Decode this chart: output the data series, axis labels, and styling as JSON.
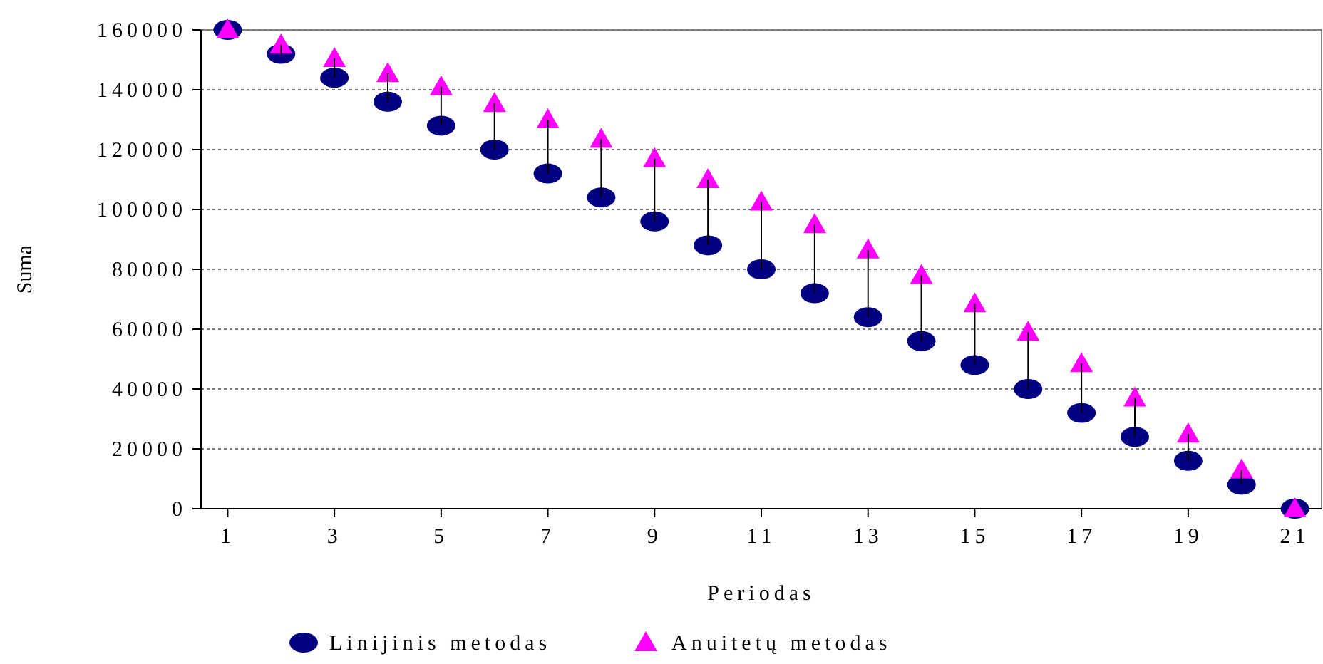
{
  "chart_data": {
    "type": "scatter",
    "xlabel": "Periodas",
    "ylabel": "Suma",
    "x": [
      1,
      2,
      3,
      4,
      5,
      6,
      7,
      8,
      9,
      10,
      11,
      12,
      13,
      14,
      15,
      16,
      17,
      18,
      19,
      20,
      21
    ],
    "xlim": [
      0.5,
      21.5
    ],
    "xticks": [
      1,
      3,
      5,
      7,
      9,
      11,
      13,
      15,
      17,
      19,
      21
    ],
    "ylim": [
      0,
      160000
    ],
    "yticks": [
      0,
      20000,
      40000,
      60000,
      80000,
      100000,
      120000,
      140000,
      160000
    ],
    "grid": "y",
    "legend": "bottom",
    "series": [
      {
        "name": "Linijinis metodas",
        "color": "#000080",
        "marker": "circle",
        "values": [
          160000,
          152000,
          144000,
          136000,
          128000,
          120000,
          112000,
          104000,
          96000,
          88000,
          80000,
          72000,
          64000,
          56000,
          48000,
          40000,
          32000,
          24000,
          16000,
          8000,
          0
        ],
        "errors": [
          null,
          [
            152000,
            155000
          ],
          [
            144000,
            150500
          ],
          [
            136000,
            145500
          ],
          [
            128000,
            141000
          ],
          [
            120000,
            135500
          ],
          [
            112000,
            130000
          ],
          [
            104000,
            123500
          ],
          [
            96000,
            117000
          ],
          [
            88000,
            110000
          ],
          [
            80000,
            102500
          ],
          [
            72000,
            95000
          ],
          [
            64000,
            86500
          ],
          [
            56000,
            78000
          ],
          [
            48000,
            68500
          ],
          [
            40000,
            59000
          ],
          [
            32000,
            48500
          ],
          [
            24000,
            37000
          ],
          [
            16000,
            25000
          ],
          [
            8000,
            13000
          ],
          null
        ]
      },
      {
        "name": "Anuitetų metodas",
        "color": "#ff00ff",
        "marker": "triangle",
        "values": [
          160000,
          155000,
          150500,
          145500,
          141000,
          135500,
          130000,
          123500,
          117000,
          110000,
          102500,
          95000,
          86500,
          78000,
          68500,
          59000,
          48500,
          37000,
          25000,
          13000,
          0
        ]
      }
    ]
  }
}
